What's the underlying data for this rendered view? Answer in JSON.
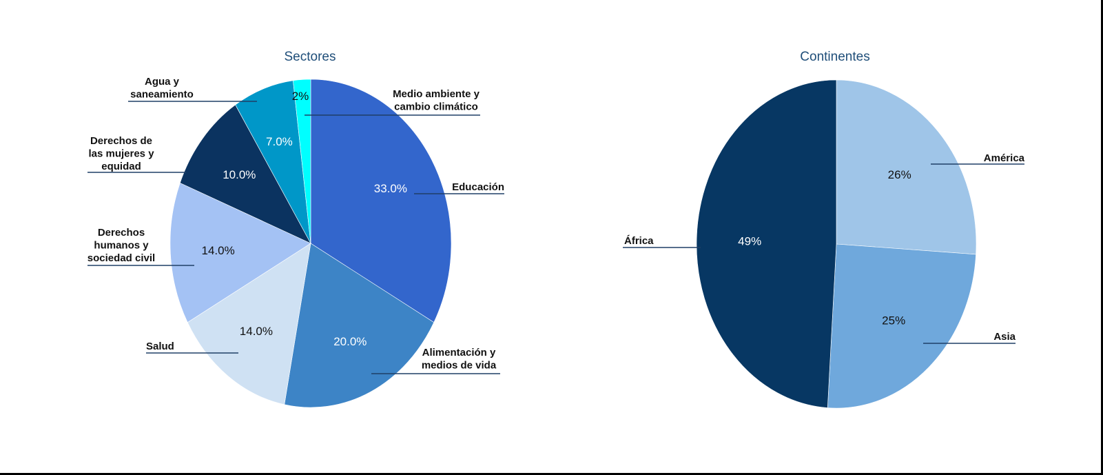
{
  "chart_data": [
    {
      "type": "pie",
      "title": "Sectores",
      "labels_style": "outside-with-leaders",
      "slices": [
        {
          "name": "Educación",
          "value": 33.0,
          "display": "33.0%",
          "color": "#3366cc",
          "text_color": "#ffffff"
        },
        {
          "name": "Alimentación y\nmedios de vida",
          "value": 20.0,
          "display": "20.0%",
          "color": "#3d84c6",
          "text_color": "#ffffff"
        },
        {
          "name": "Salud",
          "value": 14.0,
          "display": "14.0%",
          "color": "#cfe1f3",
          "text_color": "#111111"
        },
        {
          "name": "Derechos\nhumanos y\nsociedad civil",
          "value": 14.0,
          "display": "14.0%",
          "color": "#a4c2f4",
          "text_color": "#111111"
        },
        {
          "name": "Derechos de\nlas mujeres y\nequidad",
          "value": 10.0,
          "display": "10.0%",
          "color": "#0b3360",
          "text_color": "#ffffff"
        },
        {
          "name": "Agua y\nsaneamiento",
          "value": 7.0,
          "display": "7.0%",
          "color": "#0097c8",
          "text_color": "#ffffff"
        },
        {
          "name": "Medio ambiente y\ncambio climático",
          "value": 2.0,
          "display": "2%",
          "color": "#00ffff",
          "text_color": "#111111"
        }
      ]
    },
    {
      "type": "pie",
      "title": "Continentes",
      "labels_style": "outside-with-leaders",
      "slices": [
        {
          "name": "América",
          "value": 26,
          "display": "26%",
          "color": "#9fc5e8",
          "text_color": "#111111"
        },
        {
          "name": "Asia",
          "value": 25,
          "display": "25%",
          "color": "#6fa8dc",
          "text_color": "#111111"
        },
        {
          "name": "África",
          "value": 49,
          "display": "49%",
          "color": "#073763",
          "text_color": "#ffffff"
        }
      ]
    }
  ]
}
